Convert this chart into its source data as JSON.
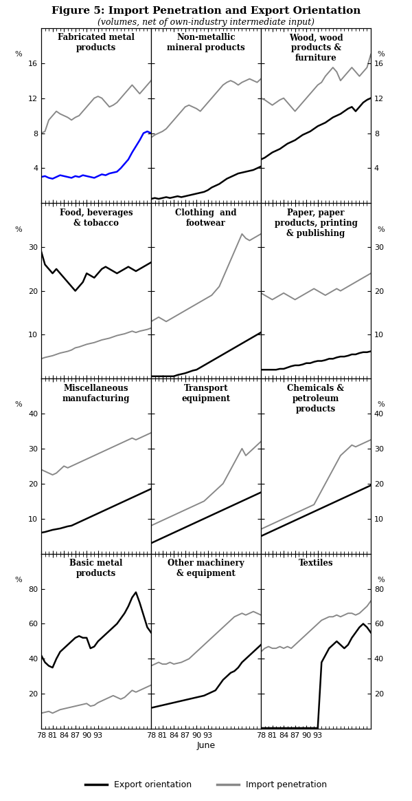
{
  "title": "Figure 5: Import Penetration and Export Orientation",
  "subtitle": "(volumes, net of own-industry intermediate input)",
  "panels": [
    {
      "title": "Fabricated metal\nproducts",
      "ylim": [
        0,
        20
      ],
      "yticks": [
        4,
        8,
        12,
        16
      ],
      "export": [
        3.0,
        3.1,
        2.9,
        2.8,
        3.0,
        3.2,
        3.1,
        3.0,
        2.9,
        3.1,
        3.0,
        3.2,
        3.1,
        3.0,
        2.9,
        3.1,
        3.3,
        3.2,
        3.4,
        3.5,
        3.6,
        4.0,
        4.5,
        5.0,
        5.8,
        6.5,
        7.2,
        8.0,
        8.2,
        8.0
      ],
      "import": [
        8.0,
        8.2,
        9.5,
        10.0,
        10.5,
        10.2,
        10.0,
        9.8,
        9.5,
        9.8,
        10.0,
        10.5,
        11.0,
        11.5,
        12.0,
        12.2,
        12.0,
        11.5,
        11.0,
        11.2,
        11.5,
        12.0,
        12.5,
        13.0,
        13.5,
        13.0,
        12.5,
        13.0,
        13.5,
        14.0
      ],
      "export_color": "#0000FF",
      "row": 0
    },
    {
      "title": "Non-metallic\nmineral products",
      "ylim": [
        0,
        20
      ],
      "yticks": [
        4,
        8,
        12,
        16
      ],
      "export": [
        0.5,
        0.6,
        0.5,
        0.6,
        0.7,
        0.6,
        0.7,
        0.8,
        0.7,
        0.8,
        0.9,
        1.0,
        1.1,
        1.2,
        1.3,
        1.5,
        1.8,
        2.0,
        2.2,
        2.5,
        2.8,
        3.0,
        3.2,
        3.4,
        3.5,
        3.6,
        3.7,
        3.8,
        4.0,
        4.2
      ],
      "import": [
        7.5,
        7.8,
        8.0,
        8.2,
        8.5,
        9.0,
        9.5,
        10.0,
        10.5,
        11.0,
        11.2,
        11.0,
        10.8,
        10.5,
        11.0,
        11.5,
        12.0,
        12.5,
        13.0,
        13.5,
        13.8,
        14.0,
        13.8,
        13.5,
        13.8,
        14.0,
        14.2,
        14.0,
        13.8,
        14.2
      ],
      "export_color": "#000000",
      "row": 0
    },
    {
      "title": "Wood, wood\nproducts &\nfurniture",
      "ylim": [
        0,
        20
      ],
      "yticks": [
        4,
        8,
        12,
        16
      ],
      "export": [
        5.0,
        5.2,
        5.5,
        5.8,
        6.0,
        6.2,
        6.5,
        6.8,
        7.0,
        7.2,
        7.5,
        7.8,
        8.0,
        8.2,
        8.5,
        8.8,
        9.0,
        9.2,
        9.5,
        9.8,
        10.0,
        10.2,
        10.5,
        10.8,
        11.0,
        10.5,
        11.0,
        11.5,
        11.8,
        12.0
      ],
      "import": [
        12.0,
        11.8,
        11.5,
        11.2,
        11.5,
        11.8,
        12.0,
        11.5,
        11.0,
        10.5,
        11.0,
        11.5,
        12.0,
        12.5,
        13.0,
        13.5,
        13.8,
        14.5,
        15.0,
        15.5,
        15.0,
        14.0,
        14.5,
        15.0,
        15.5,
        15.0,
        14.5,
        15.0,
        15.5,
        17.0
      ],
      "export_color": "#000000",
      "row": 0
    },
    {
      "title": "Food, beverages\n& tobacco",
      "ylim": [
        0,
        40
      ],
      "yticks": [
        10,
        20,
        30
      ],
      "export": [
        29.0,
        26.0,
        25.0,
        24.0,
        25.0,
        24.0,
        23.0,
        22.0,
        21.0,
        20.0,
        21.0,
        22.0,
        24.0,
        23.5,
        23.0,
        24.0,
        25.0,
        25.5,
        25.0,
        24.5,
        24.0,
        24.5,
        25.0,
        25.5,
        25.0,
        24.5,
        25.0,
        25.5,
        26.0,
        26.5
      ],
      "import": [
        4.5,
        4.8,
        5.0,
        5.2,
        5.5,
        5.8,
        6.0,
        6.2,
        6.5,
        7.0,
        7.2,
        7.5,
        7.8,
        8.0,
        8.2,
        8.5,
        8.8,
        9.0,
        9.2,
        9.5,
        9.8,
        10.0,
        10.2,
        10.5,
        10.8,
        10.5,
        10.8,
        11.0,
        11.2,
        11.5
      ],
      "export_color": "#000000",
      "row": 1
    },
    {
      "title": "Clothing  and\nfootwear",
      "ylim": [
        0,
        40
      ],
      "yticks": [
        10,
        20,
        30
      ],
      "export": [
        0.5,
        0.5,
        0.5,
        0.5,
        0.5,
        0.5,
        0.5,
        0.8,
        1.0,
        1.2,
        1.5,
        1.8,
        2.0,
        2.5,
        3.0,
        3.5,
        4.0,
        4.5,
        5.0,
        5.5,
        6.0,
        6.5,
        7.0,
        7.5,
        8.0,
        8.5,
        9.0,
        9.5,
        10.0,
        10.5
      ],
      "import": [
        13.0,
        13.5,
        14.0,
        13.5,
        13.0,
        13.5,
        14.0,
        14.5,
        15.0,
        15.5,
        16.0,
        16.5,
        17.0,
        17.5,
        18.0,
        18.5,
        19.0,
        20.0,
        21.0,
        23.0,
        25.0,
        27.0,
        29.0,
        31.0,
        33.0,
        32.0,
        31.5,
        32.0,
        32.5,
        33.0
      ],
      "export_color": "#000000",
      "row": 1
    },
    {
      "title": "Paper, paper\nproducts, printing\n& publishing",
      "ylim": [
        0,
        40
      ],
      "yticks": [
        10,
        20,
        30
      ],
      "export": [
        2.0,
        2.0,
        2.0,
        2.0,
        2.0,
        2.2,
        2.2,
        2.5,
        2.8,
        3.0,
        3.0,
        3.2,
        3.5,
        3.5,
        3.8,
        4.0,
        4.0,
        4.2,
        4.5,
        4.5,
        4.8,
        5.0,
        5.0,
        5.2,
        5.5,
        5.5,
        5.8,
        6.0,
        6.0,
        6.2
      ],
      "import": [
        19.5,
        19.0,
        18.5,
        18.0,
        18.5,
        19.0,
        19.5,
        19.0,
        18.5,
        18.0,
        18.5,
        19.0,
        19.5,
        20.0,
        20.5,
        20.0,
        19.5,
        19.0,
        19.5,
        20.0,
        20.5,
        20.0,
        20.5,
        21.0,
        21.5,
        22.0,
        22.5,
        23.0,
        23.5,
        24.0
      ],
      "export_color": "#000000",
      "row": 1
    },
    {
      "title": "Miscellaneous\nmanufacturing",
      "ylim": [
        0,
        50
      ],
      "yticks": [
        10,
        20,
        30,
        40
      ],
      "export": [
        6.0,
        6.2,
        6.5,
        6.8,
        7.0,
        7.2,
        7.5,
        7.8,
        8.0,
        8.5,
        9.0,
        9.5,
        10.0,
        10.5,
        11.0,
        11.5,
        12.0,
        12.5,
        13.0,
        13.5,
        14.0,
        14.5,
        15.0,
        15.5,
        16.0,
        16.5,
        17.0,
        17.5,
        18.0,
        18.5
      ],
      "import": [
        24.0,
        23.5,
        23.0,
        22.5,
        23.0,
        24.0,
        25.0,
        24.5,
        25.0,
        25.5,
        26.0,
        26.5,
        27.0,
        27.5,
        28.0,
        28.5,
        29.0,
        29.5,
        30.0,
        30.5,
        31.0,
        31.5,
        32.0,
        32.5,
        33.0,
        32.5,
        33.0,
        33.5,
        34.0,
        34.5
      ],
      "export_color": "#000000",
      "row": 2
    },
    {
      "title": "Transport\nequipment",
      "ylim": [
        0,
        50
      ],
      "yticks": [
        10,
        20,
        30,
        40
      ],
      "export": [
        3.0,
        3.5,
        4.0,
        4.5,
        5.0,
        5.5,
        6.0,
        6.5,
        7.0,
        7.5,
        8.0,
        8.5,
        9.0,
        9.5,
        10.0,
        10.5,
        11.0,
        11.5,
        12.0,
        12.5,
        13.0,
        13.5,
        14.0,
        14.5,
        15.0,
        15.5,
        16.0,
        16.5,
        17.0,
        17.5
      ],
      "import": [
        8.0,
        8.5,
        9.0,
        9.5,
        10.0,
        10.5,
        11.0,
        11.5,
        12.0,
        12.5,
        13.0,
        13.5,
        14.0,
        14.5,
        15.0,
        16.0,
        17.0,
        18.0,
        19.0,
        20.0,
        22.0,
        24.0,
        26.0,
        28.0,
        30.0,
        28.0,
        29.0,
        30.0,
        31.0,
        32.0
      ],
      "export_color": "#000000",
      "row": 2
    },
    {
      "title": "Chemicals &\npetroleum\nproducts",
      "ylim": [
        0,
        50
      ],
      "yticks": [
        10,
        20,
        30,
        40
      ],
      "export": [
        5.0,
        5.5,
        6.0,
        6.5,
        7.0,
        7.5,
        8.0,
        8.5,
        9.0,
        9.5,
        10.0,
        10.5,
        11.0,
        11.5,
        12.0,
        12.5,
        13.0,
        13.5,
        14.0,
        14.5,
        15.0,
        15.5,
        16.0,
        16.5,
        17.0,
        17.5,
        18.0,
        18.5,
        19.0,
        19.5
      ],
      "import": [
        7.0,
        7.5,
        8.0,
        8.5,
        9.0,
        9.5,
        10.0,
        10.5,
        11.0,
        11.5,
        12.0,
        12.5,
        13.0,
        13.5,
        14.0,
        16.0,
        18.0,
        20.0,
        22.0,
        24.0,
        26.0,
        28.0,
        29.0,
        30.0,
        31.0,
        30.5,
        31.0,
        31.5,
        32.0,
        32.5
      ],
      "export_color": "#000000",
      "row": 2
    },
    {
      "title": "Basic metal\nproducts",
      "ylim": [
        0,
        100
      ],
      "yticks": [
        20,
        40,
        60,
        80
      ],
      "export": [
        42.0,
        38.0,
        36.0,
        35.0,
        40.0,
        44.0,
        46.0,
        48.0,
        50.0,
        52.0,
        53.0,
        52.0,
        52.0,
        46.0,
        47.0,
        50.0,
        52.0,
        54.0,
        56.0,
        58.0,
        60.0,
        63.0,
        66.0,
        70.0,
        75.0,
        78.0,
        72.0,
        65.0,
        58.0,
        55.0
      ],
      "import": [
        9.0,
        9.5,
        10.0,
        9.0,
        10.0,
        11.0,
        11.5,
        12.0,
        12.5,
        13.0,
        13.5,
        14.0,
        14.5,
        13.0,
        13.5,
        15.0,
        16.0,
        17.0,
        18.0,
        19.0,
        18.0,
        17.0,
        18.0,
        20.0,
        22.0,
        21.0,
        22.0,
        23.0,
        24.0,
        25.0
      ],
      "export_color": "#000000",
      "row": 3
    },
    {
      "title": "Other machinery\n& equipment",
      "ylim": [
        0,
        100
      ],
      "yticks": [
        20,
        40,
        60,
        80
      ],
      "export": [
        12.0,
        12.5,
        13.0,
        13.5,
        14.0,
        14.5,
        15.0,
        15.5,
        16.0,
        16.5,
        17.0,
        17.5,
        18.0,
        18.5,
        19.0,
        20.0,
        21.0,
        22.0,
        25.0,
        28.0,
        30.0,
        32.0,
        33.0,
        35.0,
        38.0,
        40.0,
        42.0,
        44.0,
        46.0,
        48.0
      ],
      "import": [
        36.0,
        37.0,
        38.0,
        37.0,
        37.0,
        38.0,
        37.0,
        37.5,
        38.0,
        39.0,
        40.0,
        42.0,
        44.0,
        46.0,
        48.0,
        50.0,
        52.0,
        54.0,
        56.0,
        58.0,
        60.0,
        62.0,
        64.0,
        65.0,
        66.0,
        65.0,
        66.0,
        67.0,
        66.0,
        65.0
      ],
      "export_color": "#000000",
      "row": 3
    },
    {
      "title": "Textiles",
      "ylim": [
        0,
        100
      ],
      "yticks": [
        20,
        40,
        60,
        80
      ],
      "export": [
        0.5,
        0.5,
        0.5,
        0.5,
        0.5,
        0.5,
        0.5,
        0.5,
        0.5,
        0.5,
        0.5,
        0.5,
        0.5,
        0.5,
        0.5,
        0.5,
        38.0,
        42.0,
        46.0,
        48.0,
        50.0,
        48.0,
        46.0,
        48.0,
        52.0,
        55.0,
        58.0,
        60.0,
        58.0,
        55.0
      ],
      "import": [
        44.0,
        46.0,
        47.0,
        46.0,
        46.0,
        47.0,
        46.0,
        47.0,
        46.0,
        48.0,
        50.0,
        52.0,
        54.0,
        56.0,
        58.0,
        60.0,
        62.0,
        63.0,
        64.0,
        64.0,
        65.0,
        64.0,
        65.0,
        66.0,
        66.0,
        65.0,
        66.0,
        68.0,
        70.0,
        73.0
      ],
      "export_color": "#000000",
      "row": 3
    }
  ],
  "n_points": 30,
  "xtick_positions": [
    0,
    3,
    6,
    9,
    12,
    15
  ],
  "xtick_labels": [
    "78",
    "81",
    "84",
    "87",
    "90",
    "93"
  ],
  "xlabel": "June",
  "export_color_default": "#000000",
  "import_color": "#888888",
  "legend_export_label": "Export orientation",
  "legend_import_label": "Import penetration"
}
